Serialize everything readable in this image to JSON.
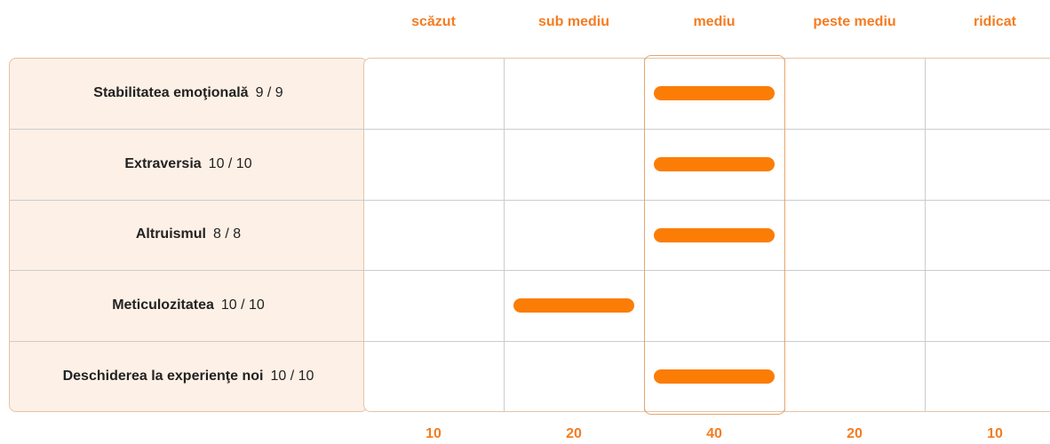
{
  "columns": [
    {
      "label": "scăzut",
      "count": "10"
    },
    {
      "label": "sub mediu",
      "count": "20"
    },
    {
      "label": "mediu",
      "count": "40"
    },
    {
      "label": "peste mediu",
      "count": "20"
    },
    {
      "label": "ridicat",
      "count": "10"
    }
  ],
  "highlight_column": 2,
  "rows": [
    {
      "name": "Stabilitatea emoţională",
      "score": "9 / 9",
      "level": 2
    },
    {
      "name": "Extraversia",
      "score": "10 / 10",
      "level": 2
    },
    {
      "name": "Altruismul",
      "score": "8 / 8",
      "level": 2
    },
    {
      "name": "Meticulozitatea",
      "score": "10 / 10",
      "level": 1
    },
    {
      "name": "Deschiderea la experienţe noi",
      "score": "10 / 10",
      "level": 2
    }
  ]
}
